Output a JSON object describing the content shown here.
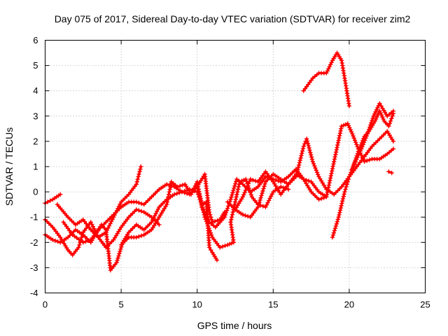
{
  "chart_data": {
    "type": "scatter",
    "title": "Day 075 of 2017, Sidereal Day-to-day VTEC variation (SDTVAR) for receiver zim2",
    "xlabel": "GPS time / hours",
    "ylabel": "SDTVAR / TECUs",
    "xlim": [
      0,
      25
    ],
    "ylim": [
      -4,
      6
    ],
    "xticks": [
      "0",
      "5",
      "10",
      "15",
      "20",
      "25"
    ],
    "yticks": [
      "-4",
      "-3",
      "-2",
      "-1",
      "0",
      "1",
      "2",
      "3",
      "4",
      "5",
      "6"
    ],
    "grid": true,
    "marker": "plus",
    "color": "#ff0000",
    "series": [
      {
        "points": [
          [
            0,
            -0.45
          ],
          [
            0.5,
            -0.3
          ],
          [
            1,
            -0.1
          ]
        ]
      },
      {
        "points": [
          [
            0,
            -1.1
          ],
          [
            0.5,
            -1.4
          ],
          [
            1,
            -1.8
          ],
          [
            1.5,
            -2.3
          ],
          [
            1.8,
            -2.5
          ],
          [
            2.2,
            -2.2
          ],
          [
            2.5,
            -1.6
          ],
          [
            3,
            -1.2
          ],
          [
            3.5,
            -1.8
          ],
          [
            4,
            -2.2
          ],
          [
            4.5,
            -1.9
          ],
          [
            5,
            -1.4
          ],
          [
            5.5,
            -1.0
          ],
          [
            6,
            -0.7
          ],
          [
            6.5,
            -0.8
          ],
          [
            7,
            -1.0
          ],
          [
            7.5,
            -1.3
          ]
        ]
      },
      {
        "points": [
          [
            0,
            -1.7
          ],
          [
            0.5,
            -1.9
          ],
          [
            1,
            -2.0
          ],
          [
            1.5,
            -1.8
          ],
          [
            2,
            -1.5
          ],
          [
            2.5,
            -1.7
          ],
          [
            3,
            -2.0
          ],
          [
            3.3,
            -1.7
          ],
          [
            3.7,
            -1.3
          ],
          [
            4,
            -1.5
          ],
          [
            4.3,
            -3.1
          ],
          [
            4.7,
            -2.8
          ],
          [
            5.1,
            -2.0
          ],
          [
            5.5,
            -1.6
          ],
          [
            6,
            -1.3
          ],
          [
            6.5,
            -1.5
          ],
          [
            7,
            -1.2
          ],
          [
            7.5,
            -0.6
          ],
          [
            8,
            -0.3
          ],
          [
            8.5,
            -0.1
          ],
          [
            9,
            0.0
          ],
          [
            9.5,
            0.1
          ],
          [
            10,
            0.0
          ],
          [
            10.3,
            -0.5
          ],
          [
            10.6,
            -0.4
          ],
          [
            10.8,
            -2.2
          ],
          [
            11,
            -2.4
          ],
          [
            11.3,
            -2.7
          ]
        ]
      },
      {
        "points": [
          [
            0.8,
            -0.5
          ],
          [
            1.5,
            -1.0
          ],
          [
            2,
            -1.3
          ],
          [
            2.5,
            -1.1
          ],
          [
            3,
            -1.5
          ],
          [
            3.5,
            -1.8
          ],
          [
            4,
            -1.6
          ],
          [
            4.5,
            -1.0
          ],
          [
            5,
            -0.4
          ],
          [
            5.5,
            -0.1
          ],
          [
            6,
            0.3
          ],
          [
            6.3,
            1.0
          ]
        ]
      },
      {
        "points": [
          [
            1.2,
            -1.2
          ],
          [
            1.8,
            -1.7
          ],
          [
            2.5,
            -2.0
          ],
          [
            3,
            -1.9
          ],
          [
            3.5,
            -1.5
          ],
          [
            4,
            -1.2
          ],
          [
            4.5,
            -0.9
          ],
          [
            5,
            -0.6
          ],
          [
            5.5,
            -0.4
          ],
          [
            6,
            -0.4
          ],
          [
            6.5,
            -0.5
          ],
          [
            7,
            -0.2
          ],
          [
            7.5,
            0.1
          ],
          [
            8,
            0.3
          ],
          [
            8.5,
            0.2
          ],
          [
            9,
            0.0
          ],
          [
            9.5,
            -0.1
          ],
          [
            10,
            0.2
          ],
          [
            10.5,
            0.7
          ],
          [
            10.8,
            -0.8
          ],
          [
            11,
            -1.2
          ],
          [
            11.5,
            -1.1
          ],
          [
            11.8,
            -0.8
          ]
        ]
      },
      {
        "points": [
          [
            5,
            -2.1
          ],
          [
            5.5,
            -1.8
          ],
          [
            6,
            -1.8
          ],
          [
            6.5,
            -1.7
          ],
          [
            7,
            -1.5
          ],
          [
            7.5,
            -1.0
          ],
          [
            8,
            -0.5
          ],
          [
            8.3,
            0.4
          ],
          [
            8.7,
            0.2
          ],
          [
            9.2,
            0.3
          ],
          [
            9.6,
            -0.1
          ],
          [
            10,
            0.4
          ],
          [
            10.3,
            -0.6
          ],
          [
            10.8,
            -1.2
          ],
          [
            11.2,
            -1.4
          ],
          [
            11.8,
            -1.0
          ],
          [
            12.2,
            -0.3
          ],
          [
            12.6,
            0.5
          ],
          [
            13,
            0.3
          ],
          [
            13.5,
            0.0
          ],
          [
            14,
            0.2
          ],
          [
            14.5,
            0.6
          ],
          [
            15,
            0.5
          ],
          [
            15.5,
            0.4
          ],
          [
            16,
            0.6
          ],
          [
            16.5,
            0.9
          ],
          [
            17,
            0.5
          ],
          [
            17.5,
            0.0
          ],
          [
            18,
            -0.3
          ],
          [
            18.5,
            -0.2
          ]
        ]
      },
      {
        "points": [
          [
            10,
            0.3
          ],
          [
            10.5,
            -1.0
          ],
          [
            11,
            -1.8
          ],
          [
            11.5,
            -2.2
          ],
          [
            12,
            -2.1
          ],
          [
            12.4,
            -2.0
          ],
          [
            12.2,
            -1.2
          ],
          [
            12.5,
            -0.4
          ],
          [
            12.8,
            0.4
          ],
          [
            13.2,
            0.5
          ],
          [
            13.6,
            -0.2
          ],
          [
            14,
            -0.5
          ],
          [
            14.5,
            -0.6
          ],
          [
            15,
            0.0
          ],
          [
            15.5,
            0.2
          ],
          [
            16,
            0.1
          ]
        ]
      },
      {
        "points": [
          [
            12,
            -0.4
          ],
          [
            12.5,
            -0.7
          ],
          [
            13,
            -0.9
          ],
          [
            13.5,
            -1.0
          ],
          [
            14,
            -0.6
          ],
          [
            14.5,
            0.4
          ],
          [
            15,
            0.7
          ],
          [
            15.5,
            0.5
          ],
          [
            16,
            0.3
          ],
          [
            16.5,
            0.6
          ],
          [
            17,
            1.8
          ],
          [
            17.2,
            2.1
          ],
          [
            17.6,
            1.2
          ],
          [
            18,
            0.6
          ],
          [
            18.5,
            0.1
          ],
          [
            19,
            -0.1
          ],
          [
            19.5,
            0.2
          ],
          [
            20,
            0.6
          ],
          [
            20.5,
            1.0
          ],
          [
            21,
            1.4
          ],
          [
            21.5,
            1.8
          ],
          [
            22,
            2.1
          ],
          [
            22.5,
            2.4
          ],
          [
            22.9,
            2.0
          ]
        ]
      },
      {
        "points": [
          [
            12.5,
            -0.7
          ],
          [
            13,
            -0.2
          ],
          [
            13.5,
            0.5
          ],
          [
            14,
            0.4
          ],
          [
            14.5,
            0.8
          ],
          [
            15,
            0.4
          ],
          [
            15.5,
            -0.1
          ],
          [
            16,
            0.3
          ],
          [
            16.5,
            0.7
          ],
          [
            17,
            0.5
          ],
          [
            17.5,
            0.4
          ],
          [
            18,
            0.0
          ],
          [
            18.5,
            -0.2
          ],
          [
            19,
            1.2
          ],
          [
            19.5,
            2.6
          ],
          [
            19.9,
            2.7
          ],
          [
            20.2,
            2.3
          ],
          [
            20.6,
            1.7
          ],
          [
            21,
            1.2
          ],
          [
            21.5,
            1.3
          ],
          [
            22,
            1.3
          ],
          [
            22.5,
            1.5
          ],
          [
            22.9,
            1.7
          ]
        ]
      },
      {
        "points": [
          [
            17,
            4.0
          ],
          [
            17.6,
            4.5
          ],
          [
            18,
            4.7
          ],
          [
            18.5,
            4.7
          ],
          [
            18.9,
            5.2
          ],
          [
            19.2,
            5.5
          ],
          [
            19.5,
            5.2
          ],
          [
            19.7,
            4.5
          ],
          [
            20,
            3.4
          ]
        ]
      },
      {
        "points": [
          [
            18.9,
            -1.8
          ],
          [
            19.3,
            -1.0
          ],
          [
            19.7,
            0.0
          ],
          [
            20,
            0.6
          ],
          [
            20.4,
            1.2
          ],
          [
            20.8,
            1.7
          ],
          [
            21.2,
            2.3
          ],
          [
            21.6,
            3.0
          ],
          [
            22,
            3.5
          ],
          [
            22.2,
            3.3
          ],
          [
            22.5,
            3.0
          ],
          [
            22.9,
            3.2
          ]
        ]
      },
      {
        "points": [
          [
            20.2,
            0.9
          ],
          [
            20.6,
            1.6
          ],
          [
            21,
            2.2
          ],
          [
            21.3,
            2.4
          ],
          [
            21.7,
            2.8
          ],
          [
            22,
            3.2
          ],
          [
            22.3,
            2.8
          ],
          [
            22.6,
            2.6
          ],
          [
            22.9,
            3.1
          ]
        ]
      },
      {
        "points": [
          [
            22.6,
            0.8
          ],
          [
            22.8,
            0.75
          ]
        ]
      }
    ]
  }
}
